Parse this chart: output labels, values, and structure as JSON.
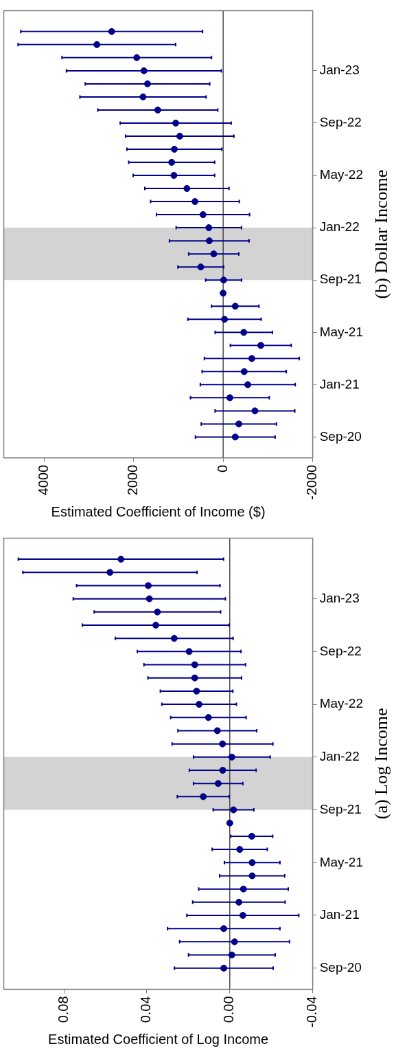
{
  "chart_data": [
    {
      "type": "scatter",
      "orientation": "horizontal",
      "title": "(b) Dollar Income",
      "xlabel": "Estimated Coefficient of Income ($)",
      "categories": [
        null,
        null,
        null,
        "Jan-23",
        null,
        null,
        null,
        "Sep-22",
        null,
        null,
        null,
        "May-22",
        null,
        null,
        null,
        "Jan-22",
        null,
        null,
        null,
        "Sep-21",
        null,
        null,
        null,
        "May-21",
        null,
        null,
        null,
        "Jan-21",
        null,
        null,
        null,
        "Sep-20"
      ],
      "values": [
        2490,
        2820,
        1930,
        1770,
        1690,
        1790,
        1460,
        1060,
        970,
        1090,
        1150,
        1100,
        810,
        630,
        450,
        320,
        310,
        210,
        500,
        -10,
        0,
        -270,
        -30,
        -460,
        -840,
        -640,
        -470,
        -550,
        -150,
        -710,
        -350,
        -270
      ],
      "errors": [
        2030,
        1760,
        1670,
        1730,
        1390,
        1410,
        1340,
        1240,
        1210,
        1060,
        960,
        910,
        940,
        990,
        1040,
        730,
        890,
        560,
        510,
        400,
        null,
        530,
        820,
        640,
        680,
        1060,
        940,
        1060,
        880,
        890,
        840,
        890
      ],
      "color": "#00008b",
      "marker": "circle",
      "xlim": [
        4900,
        -2000
      ],
      "xticks": [
        4000,
        2000,
        0,
        -2000
      ],
      "ref_lines": [
        {
          "axis": "x",
          "value": 0,
          "color": "#333333"
        }
      ],
      "bands": [
        {
          "axis": "y",
          "from": "Jan-22",
          "to": "Sep-21",
          "color": "#d3d3d3"
        }
      ],
      "grid": false
    },
    {
      "type": "scatter",
      "orientation": "horizontal",
      "title": "(a) Log Income",
      "xlabel": "Estimated Coefficient of Log Income",
      "categories": [
        null,
        null,
        null,
        "Jan-23",
        null,
        null,
        null,
        "Sep-22",
        null,
        null,
        null,
        "May-22",
        null,
        null,
        null,
        "Jan-22",
        null,
        null,
        null,
        "Sep-21",
        null,
        null,
        null,
        "May-21",
        null,
        null,
        null,
        "Jan-21",
        null,
        null,
        null,
        "Sep-20"
      ],
      "values": [
        0.0525,
        0.0578,
        0.0393,
        0.0388,
        0.0349,
        0.0357,
        0.0268,
        0.0196,
        0.0169,
        0.0169,
        0.016,
        0.0148,
        0.0103,
        0.006,
        0.0035,
        -0.001,
        0.0034,
        0.0056,
        0.0128,
        -0.0018,
        0,
        -0.0106,
        -0.0048,
        -0.0108,
        -0.0108,
        -0.0066,
        -0.0044,
        -0.0063,
        0.0029,
        -0.0023,
        -0.001,
        0.0029
      ],
      "errors": [
        0.0495,
        0.042,
        0.0346,
        0.0367,
        0.0305,
        0.0354,
        0.0284,
        0.025,
        0.0245,
        0.0226,
        0.0175,
        0.018,
        0.0182,
        0.019,
        0.0243,
        0.0185,
        0.0161,
        0.0119,
        0.0125,
        0.0098,
        null,
        0.0101,
        0.0133,
        0.0134,
        0.0157,
        0.0216,
        0.0223,
        0.027,
        0.0271,
        0.0265,
        0.0209,
        0.0238
      ],
      "color": "#00008b",
      "marker": "circle",
      "xlim": [
        0.109,
        -0.04
      ],
      "xticks": [
        0.08,
        0.04,
        {
          "value": 0,
          "label": "0.00"
        },
        -0.04
      ],
      "ref_lines": [
        {
          "axis": "x",
          "value": 0,
          "color": "#333333"
        }
      ],
      "bands": [
        {
          "axis": "y",
          "from": "Jan-22",
          "to": "Sep-21",
          "color": "#d3d3d3"
        }
      ],
      "grid": false
    }
  ]
}
